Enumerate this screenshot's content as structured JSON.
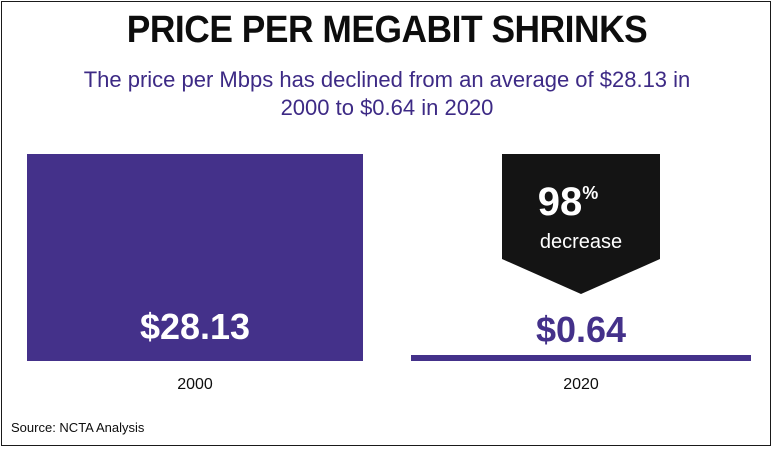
{
  "chart_data": {
    "type": "bar",
    "title": "PRICE PER MEGABIT SHRINKS",
    "subtitle": "The price per Mbps has declined from an average of $28.13 in 2000 to $0.64 in 2020",
    "categories": [
      "2000",
      "2020"
    ],
    "values": [
      28.13,
      0.64
    ],
    "value_labels": [
      "$28.13",
      "$0.64"
    ],
    "ylim": [
      0,
      28.13
    ],
    "grid": false,
    "bar_color": "#44318a",
    "annotation": {
      "percent": "98",
      "percent_symbol": "%",
      "text": "decrease",
      "color": "#141414"
    },
    "source": "Source: NCTA Analysis"
  }
}
